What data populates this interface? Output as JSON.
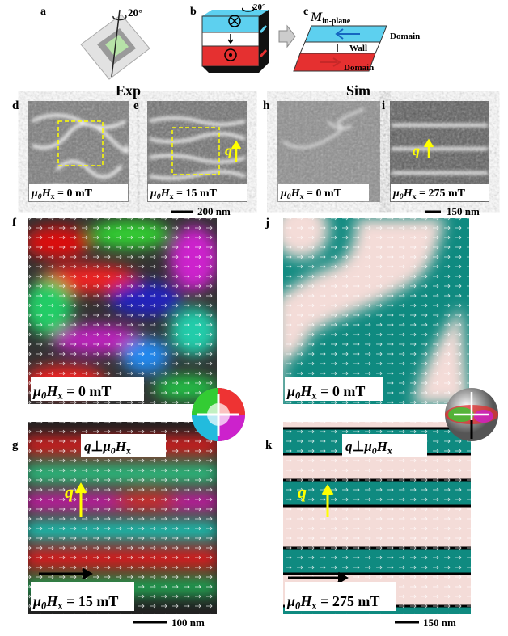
{
  "schematic": {
    "a": {
      "letter": "a",
      "angle": "20°"
    },
    "b": {
      "letter": "b",
      "angle": "20°"
    },
    "c": {
      "letter": "c",
      "m_symbol": "M",
      "m_sub": "in-plane",
      "labels": [
        "Domain",
        "Wall",
        "Domain"
      ]
    }
  },
  "headers": {
    "exp": "Exp",
    "sim": "Sim"
  },
  "field": {
    "mu": "μ",
    "mu_sub": "0",
    "h": "H",
    "h_sub": "x"
  },
  "panels": [
    {
      "letter": "d",
      "field_value": " = 0 mT"
    },
    {
      "letter": "e",
      "field_value": " = 15 mT",
      "q": "q"
    },
    {
      "letter": "h",
      "field_value": " = 0 mT"
    },
    {
      "letter": "i",
      "field_value": " = 275 mT",
      "q": "q"
    },
    {
      "letter": "f",
      "field_value": " = 0 mT"
    },
    {
      "letter": "j",
      "field_value": " = 0 mT"
    },
    {
      "letter": "g",
      "field_value": " = 15 mT",
      "q": "q",
      "annotation": {
        "q": "q",
        "perp": "⊥"
      }
    },
    {
      "letter": "k",
      "field_value": " = 275 mT",
      "q": "q",
      "annotation": {
        "q": "q",
        "perp": "⊥"
      }
    }
  ],
  "scale_bars": [
    {
      "label": "200 nm"
    },
    {
      "label": "150 nm"
    },
    {
      "label": "100 nm"
    },
    {
      "label": "150 nm"
    }
  ]
}
